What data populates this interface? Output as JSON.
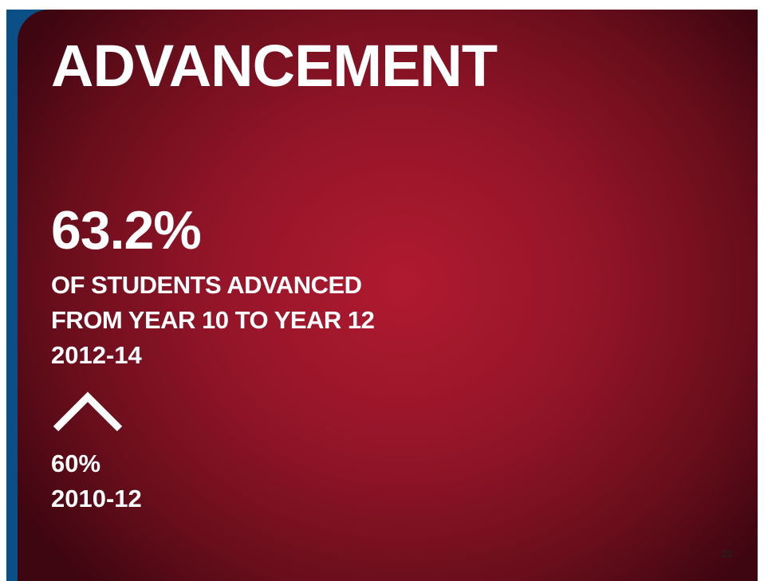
{
  "title": "ADVANCEMENT",
  "stat": {
    "value": "63.2%",
    "line1": "OF STUDENTS ADVANCED",
    "line2": "FROM YEAR 10 TO YEAR 12",
    "period": "2012-14"
  },
  "previous": {
    "value": "60%",
    "period": "2010-12"
  },
  "page_number": "22"
}
